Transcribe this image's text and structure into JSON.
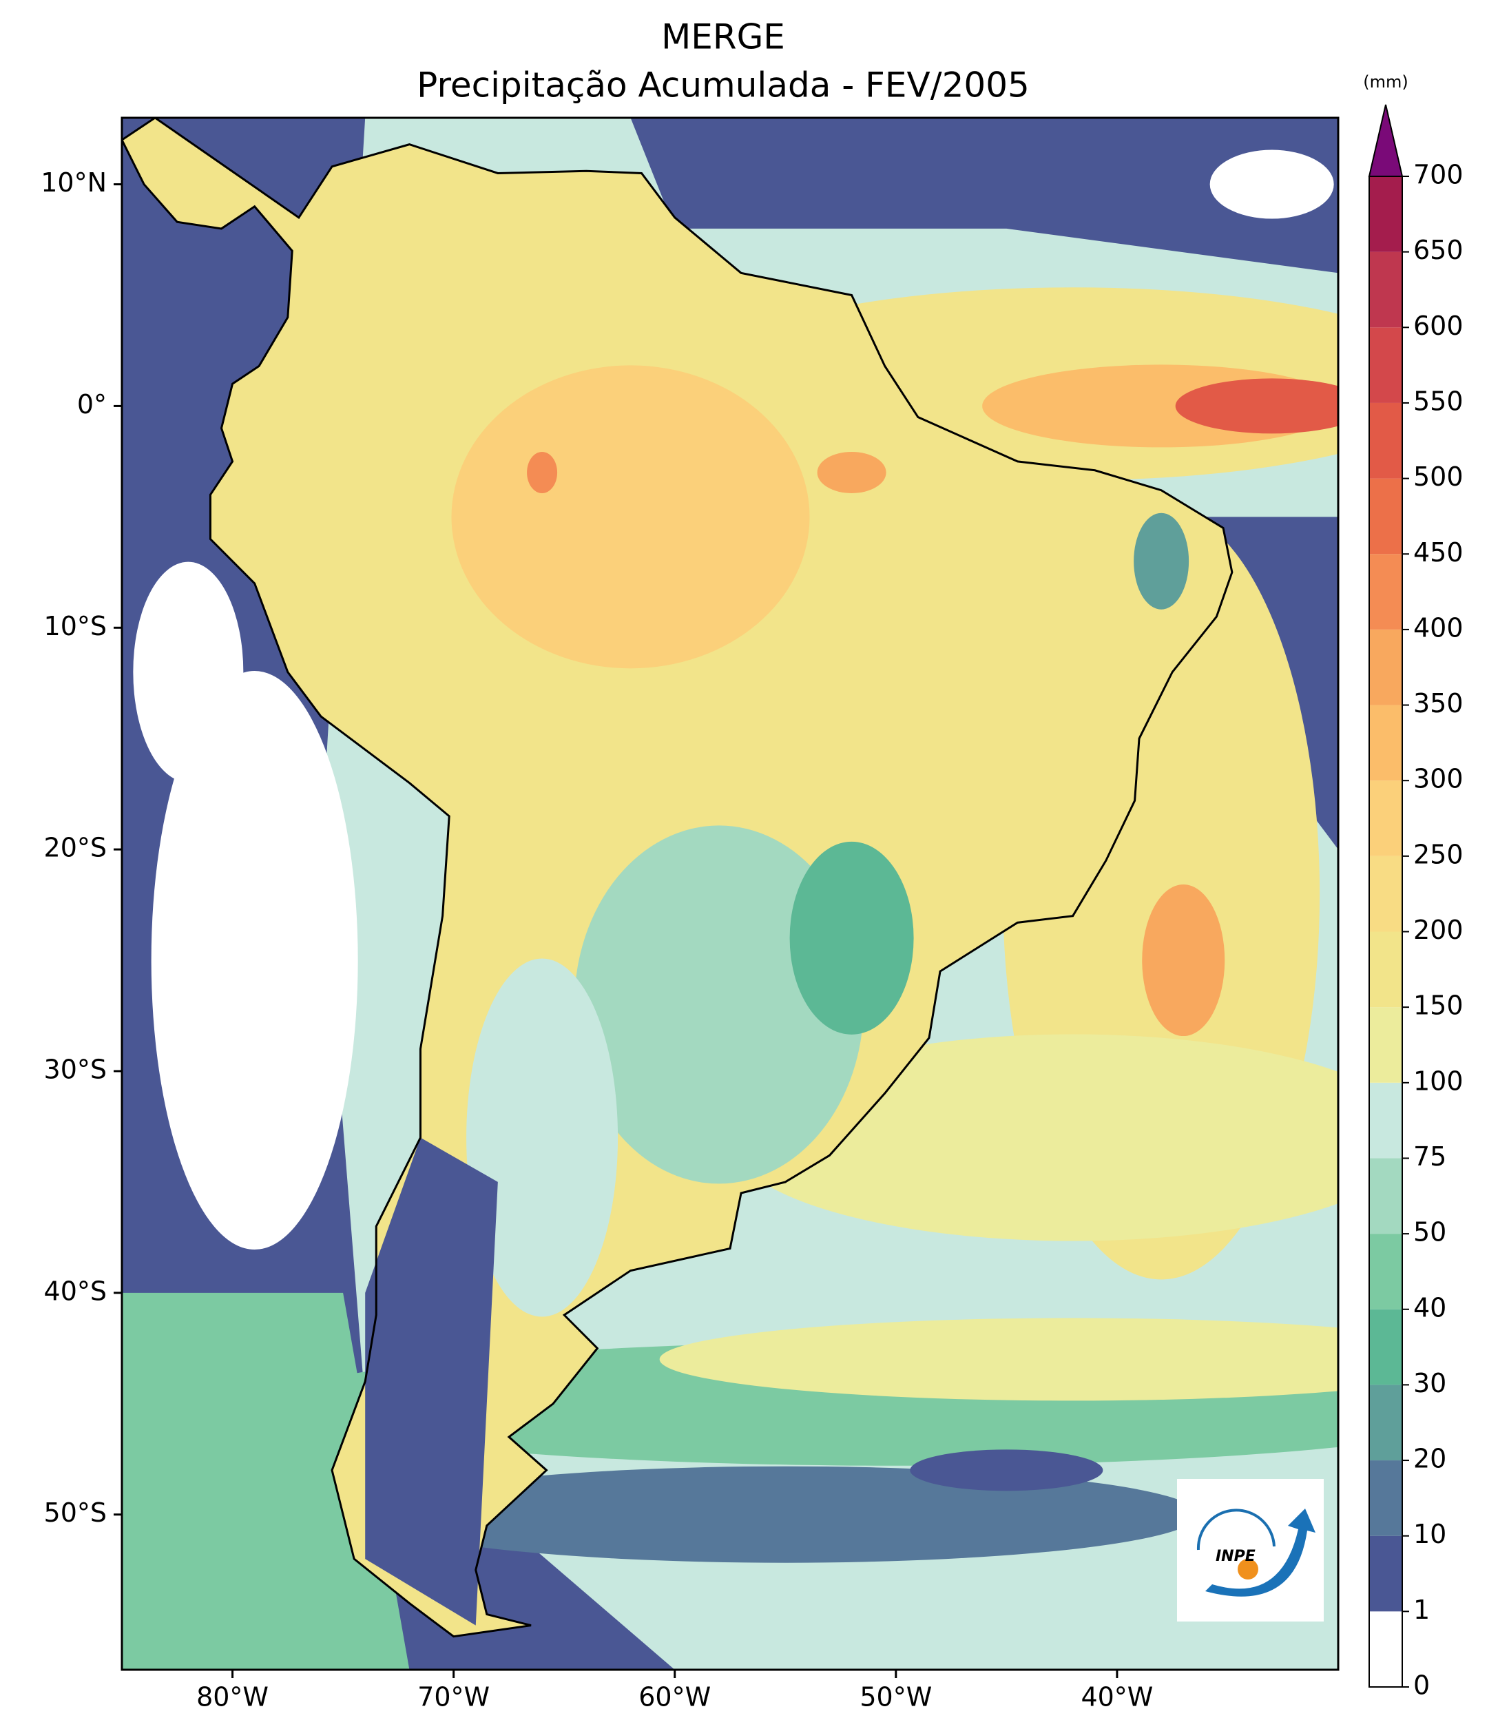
{
  "title": [
    "MERGE",
    "Precipitação Acumulada - FEV/2005"
  ],
  "map": {
    "xlim": [
      -85,
      -30
    ],
    "ylim": [
      -57,
      13
    ],
    "xticks": [
      {
        "value": -80,
        "label": "80°W"
      },
      {
        "value": -70,
        "label": "70°W"
      },
      {
        "value": -60,
        "label": "60°W"
      },
      {
        "value": -50,
        "label": "50°W"
      },
      {
        "value": -40,
        "label": "40°W"
      }
    ],
    "yticks": [
      {
        "value": 10,
        "label": "10°N"
      },
      {
        "value": 0,
        "label": "0°"
      },
      {
        "value": -10,
        "label": "10°S"
      },
      {
        "value": -20,
        "label": "20°S"
      },
      {
        "value": -30,
        "label": "30°S"
      },
      {
        "value": -40,
        "label": "40°S"
      },
      {
        "value": -50,
        "label": "50°S"
      }
    ]
  },
  "colorbar": {
    "unit": "(mm)",
    "levels": [
      0,
      1,
      10,
      20,
      30,
      40,
      50,
      75,
      100,
      150,
      200,
      250,
      300,
      350,
      400,
      450,
      500,
      550,
      600,
      650,
      700
    ],
    "colors": [
      "#ffffff",
      "#4a5794",
      "#56789a",
      "#5f9f9a",
      "#5cb895",
      "#7ccaa2",
      "#a3d9c0",
      "#c8e8df",
      "#ecec9c",
      "#f2e48a",
      "#f8dc84",
      "#fbd07a",
      "#fbbd6a",
      "#f8a85e",
      "#f48c54",
      "#ec7049",
      "#e25a47",
      "#d3484b",
      "#bf374f",
      "#a41d4d"
    ],
    "extend_color": "#7a0a78"
  },
  "logo": "INPE"
}
